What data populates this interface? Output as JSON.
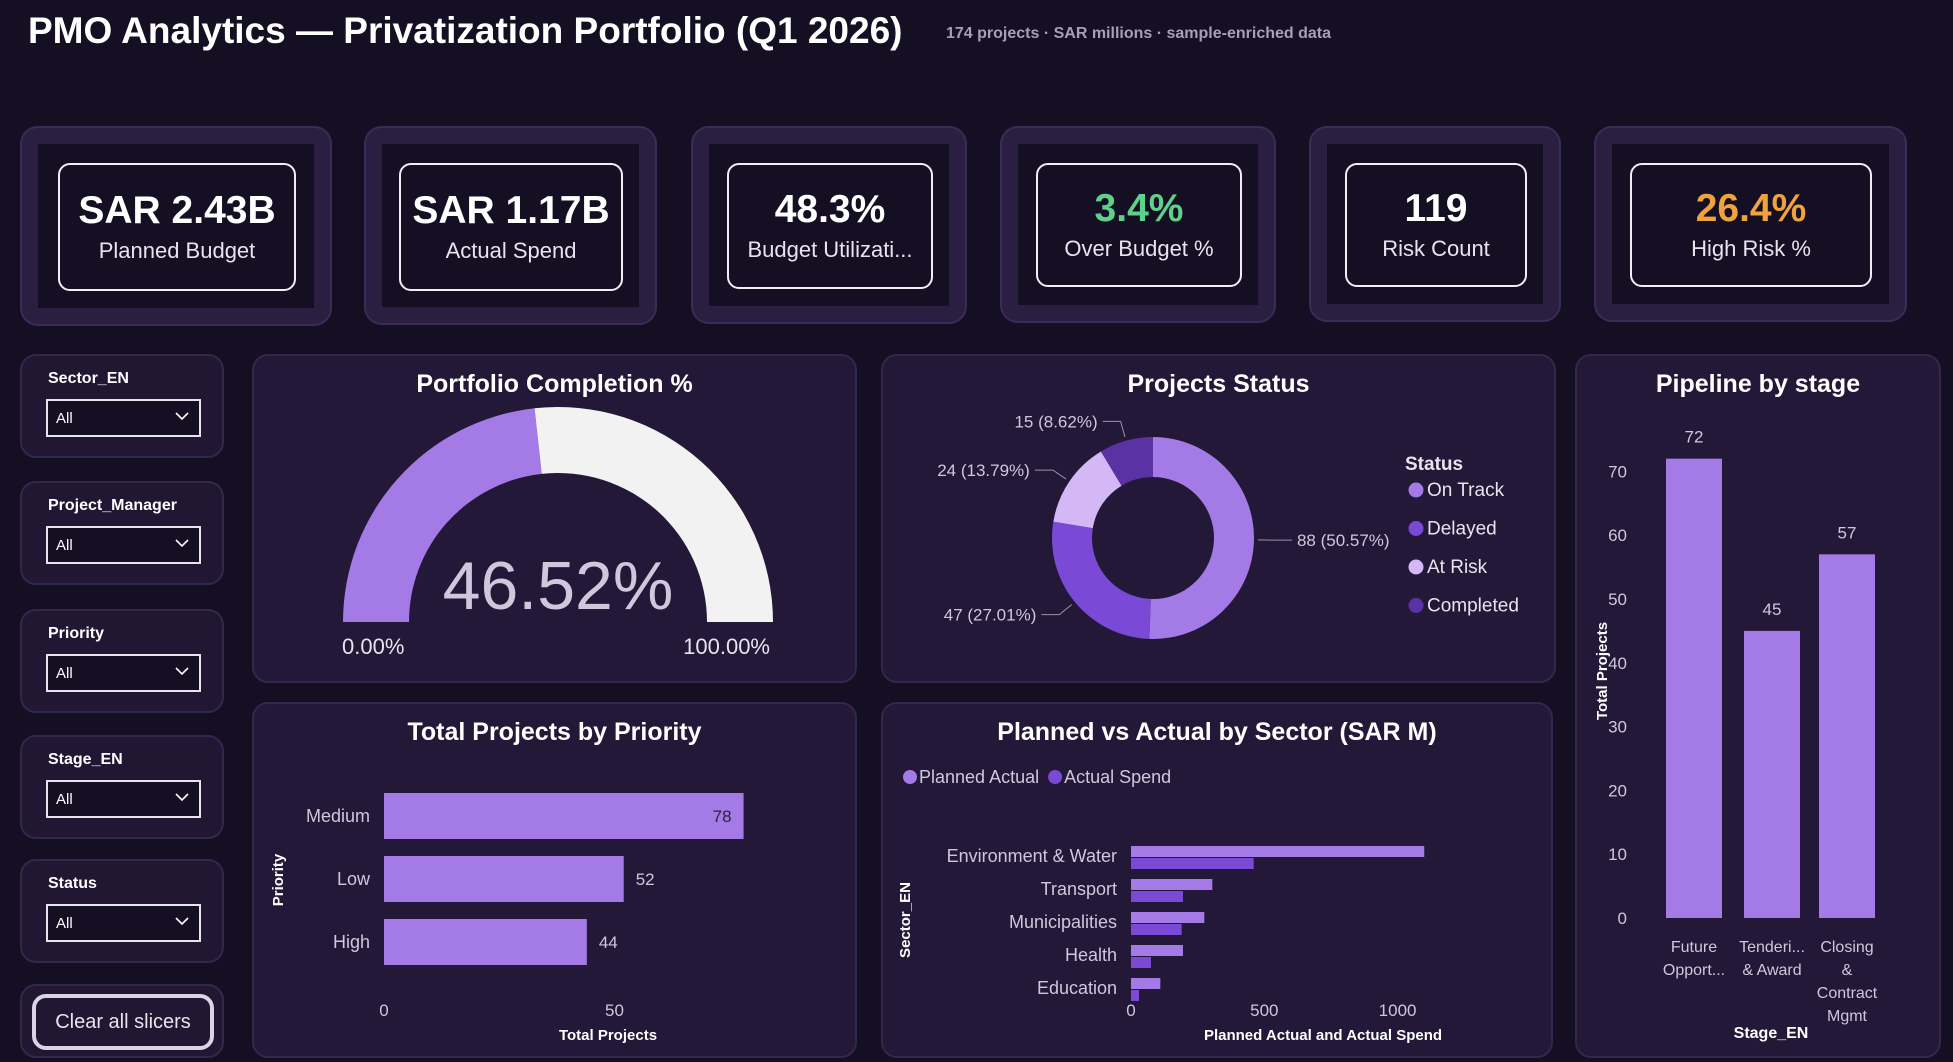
{
  "header": {
    "title": "PMO Analytics — Privatization Portfolio (Q1 2026)",
    "subtitle": "174 projects · SAR millions · sample-enriched data"
  },
  "kpis": [
    {
      "value": "SAR 2.43B",
      "label": "Planned Budget",
      "color": "#ffffff"
    },
    {
      "value": "SAR 1.17B",
      "label": "Actual Spend",
      "color": "#ffffff"
    },
    {
      "value": "48.3%",
      "label": "Budget Utilizati...",
      "color": "#ffffff"
    },
    {
      "value": "3.4%",
      "label": "Over Budget %",
      "color": "#5fd08a"
    },
    {
      "value": "119",
      "label": "Risk Count",
      "color": "#ffffff"
    },
    {
      "value": "26.4%",
      "label": "High Risk %",
      "color": "#f0a33c"
    }
  ],
  "slicers": [
    {
      "label": "Sector_EN",
      "value": "All"
    },
    {
      "label": "Project_Manager",
      "value": "All"
    },
    {
      "label": "Priority",
      "value": "All"
    },
    {
      "label": "Stage_EN",
      "value": "All"
    },
    {
      "label": "Status",
      "value": "All"
    }
  ],
  "clear_button": "Clear all slicers",
  "colors": {
    "accent": "#a47ae6",
    "accent_dark": "#7a4ad6",
    "accent_light": "#d3b8f5",
    "accent_deep": "#5a32a3",
    "gauge_rest": "#f2f2f2"
  },
  "chart_data": [
    {
      "id": "completion",
      "type": "gauge",
      "title": "Portfolio Completion %",
      "value": 46.52,
      "value_label": "46.52%",
      "min_label": "0.00%",
      "max_label": "100.00%"
    },
    {
      "id": "status",
      "type": "pie",
      "title": "Projects Status",
      "legend_title": "Status",
      "legend_position": "right",
      "slices": [
        {
          "name": "On Track",
          "value": 88,
          "label": "88 (50.57%)"
        },
        {
          "name": "Delayed",
          "value": 47,
          "label": "47 (27.01%)"
        },
        {
          "name": "At Risk",
          "value": 24,
          "label": "24 (13.79%)"
        },
        {
          "name": "Completed",
          "value": 15,
          "label": "15 (8.62%)"
        }
      ]
    },
    {
      "id": "pipeline",
      "type": "bar",
      "title": "Pipeline by stage",
      "categories": [
        [
          "Future",
          "Opport..."
        ],
        [
          "Tenderi...",
          "& Award"
        ],
        [
          "Closing",
          "&",
          "Contract",
          "Mgmt"
        ]
      ],
      "values": [
        72,
        45,
        57
      ],
      "xlabel": "Stage_EN",
      "ylabel": "Total Projects",
      "ylim": [
        0,
        75
      ],
      "yticks": [
        0,
        10,
        20,
        30,
        40,
        50,
        60,
        70
      ]
    },
    {
      "id": "priority",
      "type": "bar",
      "orientation": "horizontal",
      "title": "Total Projects by Priority",
      "categories": [
        "Medium",
        "Low",
        "High"
      ],
      "values": [
        78,
        52,
        44
      ],
      "xlabel": "Total Projects",
      "ylabel": "Priority",
      "xticks": [
        0,
        50
      ]
    },
    {
      "id": "sector",
      "type": "bar",
      "orientation": "horizontal",
      "title": "Planned vs Actual by Sector (SAR M)",
      "categories": [
        "Environment & Water",
        "Transport",
        "Municipalities",
        "Health",
        "Education"
      ],
      "series": [
        {
          "name": "Planned Actual",
          "values": [
            1100,
            305,
            275,
            195,
            110
          ]
        },
        {
          "name": "Actual Spend",
          "values": [
            460,
            195,
            190,
            75,
            30
          ]
        }
      ],
      "xlabel": "Planned Actual and Actual Spend",
      "ylabel": "Sector_EN",
      "xticks": [
        0,
        500,
        1000
      ]
    }
  ]
}
